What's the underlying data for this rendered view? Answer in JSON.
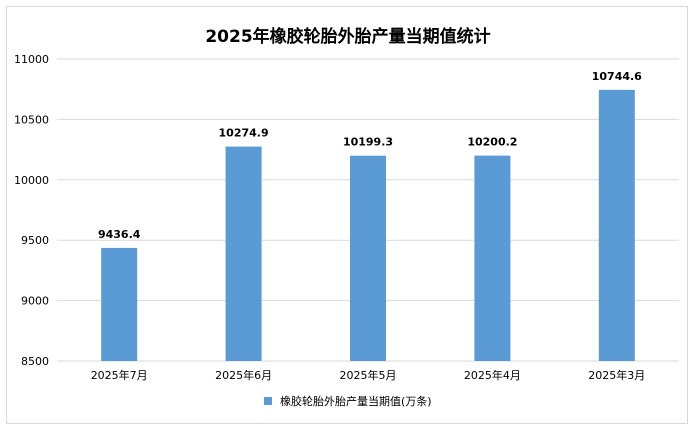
{
  "chart_data": {
    "type": "bar",
    "title": "2025年橡胶轮胎外胎产量当期值统计",
    "categories": [
      "2025年7月",
      "2025年6月",
      "2025年5月",
      "2025年4月",
      "2025年3月"
    ],
    "series": [
      {
        "name": "橡胶轮胎外胎产量当期值(万条)",
        "values": [
          9436.4,
          10274.9,
          10199.3,
          10200.2,
          10744.6
        ]
      }
    ],
    "data_labels": [
      "9436.4",
      "10274.9",
      "10199.3",
      "10200.2",
      "10744.6"
    ],
    "yticks": [
      "8500",
      "9000",
      "9500",
      "10000",
      "10500",
      "11000"
    ],
    "ylim": [
      8500,
      11000
    ],
    "grid": true,
    "legend_position": "bottom",
    "bar_color": "#5b9bd5"
  }
}
